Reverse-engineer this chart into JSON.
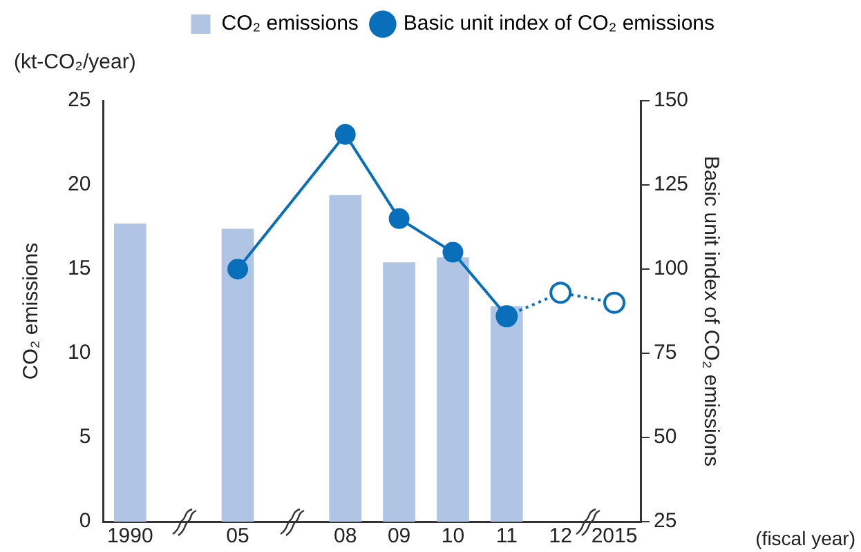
{
  "chart_data": {
    "type": "bar",
    "ylabel": "CO₂ emissions",
    "y2label": "Basic unit index of CO₂ emissions",
    "xlabel": "(fiscal year)",
    "annotations": [
      "(kt-CO₂/year)"
    ],
    "categories": [
      "1990",
      null,
      "05",
      null,
      "08",
      "09",
      "10",
      "11",
      "12",
      "2015"
    ],
    "series": [
      {
        "name": "CO₂ emissions",
        "color": "#b0c4e4",
        "values": [
          17.7,
          null,
          17.4,
          null,
          19.4,
          15.4,
          15.7,
          12.8,
          null,
          null
        ]
      },
      {
        "name": "Basic unit index of CO₂ emissions",
        "type": "line",
        "axis": "y2",
        "color": "#0a6fba",
        "marker": "circle",
        "line_style": "solid",
        "values": [
          null,
          null,
          100,
          null,
          140,
          115,
          105,
          86,
          null,
          null
        ]
      },
      {
        "type": "line",
        "axis": "y2",
        "color": "#0a6fba",
        "marker": "circle",
        "line_style": "dotted",
        "values": [
          null,
          null,
          null,
          null,
          null,
          null,
          null,
          86,
          93,
          90
        ]
      }
    ],
    "ylim": [
      0,
      25
    ],
    "yticks": [
      0,
      5,
      10,
      15,
      20,
      25
    ],
    "y2lim": [
      25,
      150
    ],
    "y2ticks": [
      25,
      50,
      75,
      100,
      125,
      150
    ],
    "grid": false,
    "legend": "top right"
  }
}
